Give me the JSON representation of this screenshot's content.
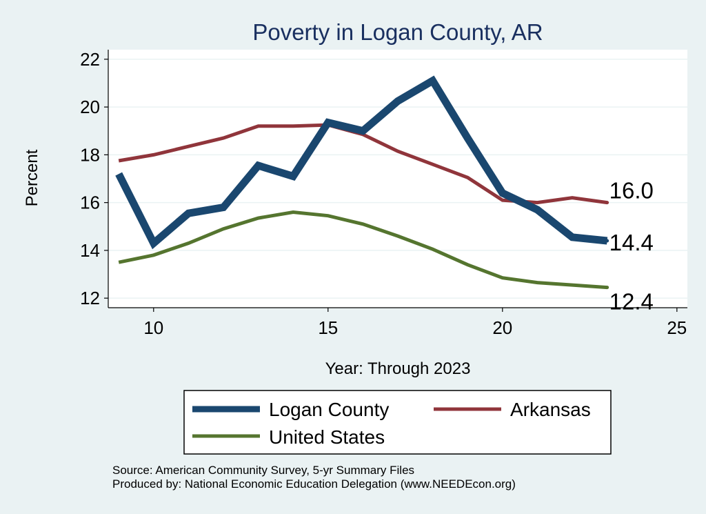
{
  "chart_data": {
    "type": "line",
    "title": "Poverty in Logan County, AR",
    "xlabel": "Year: Through 2023",
    "ylabel": "Percent",
    "xlim": [
      8.7,
      25.3
    ],
    "ylim": [
      11.6,
      22.4
    ],
    "xticks": [
      10,
      15,
      20,
      25
    ],
    "yticks": [
      12,
      14,
      16,
      18,
      20,
      22
    ],
    "grid": true,
    "legend_position": "bottom",
    "x": [
      9,
      10,
      11,
      12,
      13,
      14,
      15,
      16,
      17,
      18,
      19,
      20,
      21,
      22,
      23
    ],
    "series": [
      {
        "name": "Logan County",
        "color": "#1a476f",
        "values": [
          17.2,
          14.3,
          15.55,
          15.8,
          17.55,
          17.1,
          19.35,
          19.0,
          20.25,
          21.1,
          18.7,
          16.4,
          15.7,
          14.55,
          14.4
        ],
        "end_label": "14.4"
      },
      {
        "name": "Arkansas",
        "color": "#90353b",
        "values": [
          17.75,
          18.0,
          18.35,
          18.7,
          19.2,
          19.2,
          19.25,
          18.85,
          18.15,
          17.6,
          17.05,
          16.1,
          16.0,
          16.2,
          16.0
        ],
        "end_label": "16.0"
      },
      {
        "name": "United States",
        "color": "#55752f",
        "values": [
          13.5,
          13.8,
          14.3,
          14.9,
          15.35,
          15.6,
          15.45,
          15.1,
          14.6,
          14.05,
          13.4,
          12.85,
          12.65,
          12.55,
          12.45
        ],
        "end_label": "12.4"
      }
    ]
  },
  "source_text": "Source: American Community Survey, 5-yr Summary Files",
  "produced_text": "Produced by: National Economic Education Delegation (www.NEEDEcon.org)"
}
